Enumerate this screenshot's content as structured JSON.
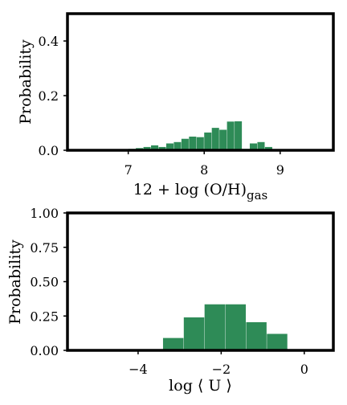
{
  "chart_data": [
    {
      "type": "bar",
      "title": "",
      "xlabel": "12 + log (O/H)",
      "xlabel_sub": "gas",
      "ylabel": "Probability",
      "xlim": [
        6.2,
        9.7
      ],
      "ylim": [
        0,
        0.5
      ],
      "xticks": [
        7,
        8,
        9
      ],
      "yticks": [
        0.0,
        0.2,
        0.4
      ],
      "ytick_labels": [
        "0.0",
        "0.2",
        "0.4"
      ],
      "bar_color": "#2e8b57",
      "bin_width": 0.1,
      "bins": [
        6.6,
        6.7,
        6.8,
        6.9,
        7.0,
        7.1,
        7.2,
        7.3,
        7.4,
        7.5,
        7.6,
        7.7,
        7.8,
        7.9,
        8.0,
        8.1,
        8.2,
        8.3,
        8.4,
        8.5,
        8.6,
        8.7,
        8.8,
        8.9
      ],
      "values": [
        0.002,
        0.002,
        0.003,
        0.004,
        0.005,
        0.008,
        0.012,
        0.018,
        0.012,
        0.025,
        0.03,
        0.042,
        0.05,
        0.048,
        0.065,
        0.082,
        0.075,
        0.105,
        0.106,
        0.005,
        0.025,
        0.03,
        0.012,
        0.003
      ],
      "grid": false
    },
    {
      "type": "bar",
      "title": "",
      "xlabel": "log ⟨ U ⟩",
      "ylabel": "Probability",
      "xlim": [
        -5.7,
        0.7
      ],
      "ylim": [
        0,
        1.0
      ],
      "xticks": [
        -4,
        -2,
        0
      ],
      "yticks": [
        0.0,
        0.25,
        0.5,
        0.75,
        1.0
      ],
      "ytick_labels": [
        "0.00",
        "0.25",
        "0.50",
        "0.75",
        "1.00"
      ],
      "bar_color": "#2e8b57",
      "bin_width": 0.5,
      "bins": [
        -3.4,
        -2.9,
        -2.4,
        -1.9,
        -1.4,
        -0.9
      ],
      "values": [
        0.09,
        0.24,
        0.335,
        0.335,
        0.205,
        0.12
      ],
      "grid": false
    }
  ]
}
